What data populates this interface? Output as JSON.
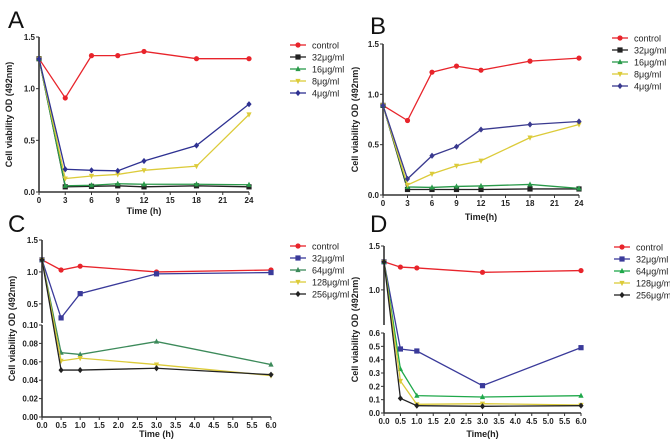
{
  "chart_data": [
    {
      "panel": "A",
      "type": "line",
      "xlabel": "Time (h)",
      "ylabel": "Cell viability OD (492nm)",
      "xlim": [
        0,
        24
      ],
      "xticks": [
        "0",
        "3",
        "6",
        "9",
        "12",
        "15",
        "18",
        "21",
        "24"
      ],
      "ylim": [
        0,
        1.5
      ],
      "yticks": [
        "0.0",
        "0.5",
        "1.0",
        "1.5"
      ],
      "legend": "right",
      "x": [
        0,
        3,
        6,
        9,
        12,
        18,
        24
      ],
      "series": [
        {
          "name": "control",
          "color": "#e8242b",
          "marker": "circle",
          "values": [
            1.29,
            0.91,
            1.32,
            1.32,
            1.36,
            1.29,
            1.29
          ]
        },
        {
          "name": "32μg/ml",
          "color": "#222222",
          "marker": "square",
          "values": [
            1.29,
            0.05,
            0.055,
            0.06,
            0.05,
            0.06,
            0.05
          ]
        },
        {
          "name": "16μg/ml",
          "color": "#2a9a4a",
          "marker": "triangle-up",
          "values": [
            1.29,
            0.06,
            0.065,
            0.08,
            0.075,
            0.075,
            0.07
          ]
        },
        {
          "name": "8μg/ml",
          "color": "#dccb3a",
          "marker": "triangle-down",
          "values": [
            1.29,
            0.13,
            0.155,
            0.17,
            0.21,
            0.25,
            0.75
          ]
        },
        {
          "name": "4μg/ml",
          "color": "#2e3192",
          "marker": "diamond",
          "values": [
            1.29,
            0.22,
            0.21,
            0.205,
            0.3,
            0.45,
            0.85
          ]
        }
      ]
    },
    {
      "panel": "B",
      "type": "line",
      "xlabel": "Time(h)",
      "ylabel": "Cell viability OD (492nm)",
      "xlim": [
        0,
        24
      ],
      "xticks": [
        "0",
        "3",
        "6",
        "9",
        "12",
        "15",
        "18",
        "21",
        "24"
      ],
      "ylim": [
        0,
        1.5
      ],
      "yticks": [
        "0.0",
        "0.5",
        "1.0",
        "1.5"
      ],
      "legend": "right",
      "x": [
        0,
        3,
        6,
        9,
        12,
        18,
        24
      ],
      "series": [
        {
          "name": "control",
          "color": "#e8242b",
          "marker": "circle",
          "values": [
            0.89,
            0.74,
            1.22,
            1.28,
            1.24,
            1.33,
            1.36
          ]
        },
        {
          "name": "32μg/ml",
          "color": "#222222",
          "marker": "square",
          "values": [
            0.89,
            0.055,
            0.055,
            0.055,
            0.055,
            0.06,
            0.06
          ]
        },
        {
          "name": "16μg/ml",
          "color": "#2a9a4a",
          "marker": "triangle-up",
          "values": [
            0.89,
            0.08,
            0.075,
            0.085,
            0.09,
            0.105,
            0.065
          ]
        },
        {
          "name": "8μg/ml",
          "color": "#dccb3a",
          "marker": "triangle-down",
          "values": [
            0.89,
            0.1,
            0.21,
            0.29,
            0.34,
            0.57,
            0.7
          ]
        },
        {
          "name": "4μg/ml",
          "color": "#3a3a8f",
          "marker": "diamond",
          "values": [
            0.89,
            0.16,
            0.39,
            0.48,
            0.65,
            0.7,
            0.73
          ]
        }
      ]
    },
    {
      "panel": "C",
      "type": "line",
      "xlabel": "Time (h)",
      "ylabel": "Cell viability OD (492nm)",
      "xlim": [
        0,
        6
      ],
      "xticks": [
        "0.0",
        "0.5",
        "1.0",
        "1.5",
        "2.0",
        "2.5",
        "3.0",
        "3.5",
        "4.0",
        "4.5",
        "5.0",
        "5.5",
        "6.0"
      ],
      "y_broken_axis": {
        "lower": [
          0,
          0.1
        ],
        "upper": [
          0.2,
          1.5
        ]
      },
      "yticks_lower": [
        "0.00",
        "0.02",
        "0.04",
        "0.06",
        "0.08",
        "0.10"
      ],
      "yticks_upper": [
        "0.5",
        "1.0",
        "1.5"
      ],
      "legend": "right",
      "x": [
        0,
        0.5,
        1,
        3,
        6
      ],
      "series": [
        {
          "name": "control",
          "color": "#e8242b",
          "marker": "circle",
          "values": [
            1.19,
            1.03,
            1.09,
            1.0,
            1.03
          ]
        },
        {
          "name": "32μg/ml",
          "color": "#3a3a9a",
          "marker": "square",
          "values": [
            1.19,
            0.28,
            0.66,
            0.97,
            0.99
          ]
        },
        {
          "name": "64μg/ml",
          "color": "#3c8a5a",
          "marker": "triangle-up",
          "values": [
            1.19,
            0.07,
            0.068,
            0.082,
            0.057
          ]
        },
        {
          "name": "128μg/ml",
          "color": "#dccb3a",
          "marker": "triangle-down",
          "values": [
            1.19,
            0.061,
            0.064,
            0.057,
            0.045
          ]
        },
        {
          "name": "256μg/ml",
          "color": "#222222",
          "marker": "diamond",
          "values": [
            1.19,
            0.051,
            0.051,
            0.053,
            0.046
          ]
        }
      ]
    },
    {
      "panel": "D",
      "type": "line",
      "xlabel": "Time(h)",
      "ylabel": "Cell viability OD (492nm)",
      "xlim": [
        0,
        6
      ],
      "xticks": [
        "0.0",
        "0.5",
        "1.0",
        "1.5",
        "2.0",
        "2.5",
        "3.0",
        "3.5",
        "4.0",
        "4.5",
        "5.0",
        "5.5",
        "6.0"
      ],
      "y_broken_axis": {
        "lower": [
          0,
          0.6
        ],
        "upper": [
          0.6,
          1.5
        ]
      },
      "yticks_lower": [
        "0.0",
        "0.1",
        "0.2",
        "0.3",
        "0.4",
        "0.5",
        "0.6"
      ],
      "yticks_upper": [
        "1.0",
        "1.5"
      ],
      "legend": "right",
      "x": [
        0,
        0.5,
        1,
        3,
        6
      ],
      "series": [
        {
          "name": "control",
          "color": "#e8242b",
          "marker": "circle",
          "values": [
            1.32,
            1.26,
            1.25,
            1.2,
            1.22
          ]
        },
        {
          "name": "32μg/ml",
          "color": "#3a3a9a",
          "marker": "square",
          "values": [
            1.32,
            0.48,
            0.465,
            0.205,
            0.49
          ]
        },
        {
          "name": "64μg/ml",
          "color": "#1fa84a",
          "marker": "triangle-up",
          "values": [
            1.32,
            0.33,
            0.13,
            0.12,
            0.13
          ]
        },
        {
          "name": "128μg/ml",
          "color": "#dccb3a",
          "marker": "triangle-down",
          "values": [
            1.32,
            0.24,
            0.065,
            0.07,
            0.06
          ]
        },
        {
          "name": "256μg/ml",
          "color": "#222222",
          "marker": "diamond",
          "values": [
            1.32,
            0.11,
            0.055,
            0.05,
            0.055
          ]
        }
      ]
    }
  ]
}
